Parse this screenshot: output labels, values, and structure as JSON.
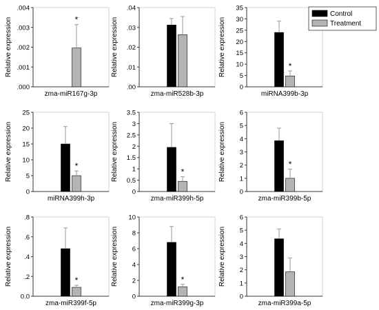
{
  "legend": {
    "items": [
      {
        "label": "Control",
        "color": "#000000"
      },
      {
        "label": "Treatment",
        "color": "#b3b3b3"
      }
    ],
    "position": "top-right"
  },
  "colors": {
    "control": "#000000",
    "treatment": "#b3b3b3",
    "axis": "#333333",
    "frame": "#c8c8c8"
  },
  "ylabel": "Relative expression",
  "chart_data": [
    {
      "type": "bar",
      "title": "",
      "xlabel": "zma-miR167g-3p",
      "ylabel": "Relative expression",
      "ylim": [
        0,
        0.004
      ],
      "yticks": [
        ".000",
        ".001",
        ".002",
        ".003",
        ".004"
      ],
      "series": [
        {
          "name": "Control",
          "values": [
            0
          ],
          "errors": [
            0
          ]
        },
        {
          "name": "Treatment",
          "values": [
            0.00196
          ],
          "errors": [
            0.00118
          ]
        }
      ],
      "annotations": [
        {
          "text": "*",
          "series": "Treatment"
        }
      ]
    },
    {
      "type": "bar",
      "title": "",
      "xlabel": "zma-miR528b-3p",
      "ylabel": "Relative expression",
      "ylim": [
        0,
        0.04
      ],
      "yticks": [
        ".00",
        ".01",
        ".02",
        ".03",
        ".04"
      ],
      "series": [
        {
          "name": "Control",
          "values": [
            0.0312
          ],
          "errors": [
            0.0033
          ]
        },
        {
          "name": "Treatment",
          "values": [
            0.0263
          ],
          "errors": [
            0.0092
          ]
        }
      ],
      "annotations": []
    },
    {
      "type": "bar",
      "title": "",
      "xlabel": "miRNA399b-3p",
      "ylabel": "Relative expression",
      "ylim": [
        0,
        35
      ],
      "yticks": [
        "0",
        "5",
        "10",
        "15",
        "20",
        "25",
        "30",
        "35"
      ],
      "series": [
        {
          "name": "Control",
          "values": [
            24
          ],
          "errors": [
            5
          ]
        },
        {
          "name": "Treatment",
          "values": [
            4.8
          ],
          "errors": [
            2.2
          ]
        }
      ],
      "annotations": [
        {
          "text": "*",
          "series": "Treatment"
        }
      ]
    },
    {
      "type": "bar",
      "title": "",
      "xlabel": "miRNA399h-3p",
      "ylabel": "Relative expression",
      "ylim": [
        0,
        25
      ],
      "yticks": [
        "0",
        "5",
        "10",
        "15",
        "20",
        "25"
      ],
      "series": [
        {
          "name": "Control",
          "values": [
            15
          ],
          "errors": [
            5.5
          ]
        },
        {
          "name": "Treatment",
          "values": [
            5
          ],
          "errors": [
            1.5
          ]
        }
      ],
      "annotations": [
        {
          "text": "*",
          "series": "Treatment"
        }
      ]
    },
    {
      "type": "bar",
      "title": "",
      "xlabel": "zma-miR399h-5p",
      "ylabel": "Relative expression",
      "ylim": [
        0,
        3.5
      ],
      "yticks": [
        "0",
        "0.5",
        "1",
        "1.5",
        "2",
        "2.5",
        "3",
        "3.5"
      ],
      "series": [
        {
          "name": "Control",
          "values": [
            1.95
          ],
          "errors": [
            1.05
          ]
        },
        {
          "name": "Treatment",
          "values": [
            0.45
          ],
          "errors": [
            0.2
          ]
        }
      ],
      "annotations": [
        {
          "text": "*",
          "series": "Treatment"
        }
      ]
    },
    {
      "type": "bar",
      "title": "",
      "xlabel": "zma-miR399b-5p",
      "ylabel": "Relative expression",
      "ylim": [
        0,
        6
      ],
      "yticks": [
        "0",
        "1",
        "2",
        "3",
        "4",
        "5",
        "6"
      ],
      "series": [
        {
          "name": "Control",
          "values": [
            3.85
          ],
          "errors": [
            0.95
          ]
        },
        {
          "name": "Treatment",
          "values": [
            1
          ],
          "errors": [
            0.7
          ]
        }
      ],
      "annotations": [
        {
          "text": "*",
          "series": "Treatment"
        }
      ]
    },
    {
      "type": "bar",
      "title": "",
      "xlabel": "zma-miR399f-5p",
      "ylabel": "Relative expression",
      "ylim": [
        0,
        0.8
      ],
      "yticks": [
        "0.0",
        ".2",
        ".4",
        ".6",
        ".8"
      ],
      "series": [
        {
          "name": "Control",
          "values": [
            0.48
          ],
          "errors": [
            0.21
          ]
        },
        {
          "name": "Treatment",
          "values": [
            0.09
          ],
          "errors": [
            0.02
          ]
        }
      ],
      "annotations": [
        {
          "text": "*",
          "series": "Treatment"
        }
      ]
    },
    {
      "type": "bar",
      "title": "",
      "xlabel": "zma-miR399g-3p",
      "ylabel": "Relative expression",
      "ylim": [
        0,
        10
      ],
      "yticks": [
        "0",
        "2",
        "4",
        "6",
        "8",
        "10"
      ],
      "series": [
        {
          "name": "Control",
          "values": [
            6.8
          ],
          "errors": [
            2
          ]
        },
        {
          "name": "Treatment",
          "values": [
            1.2
          ],
          "errors": [
            0.3
          ]
        }
      ],
      "annotations": [
        {
          "text": "*",
          "series": "Treatment"
        }
      ]
    },
    {
      "type": "bar",
      "title": "",
      "xlabel": "zma-miR399a-5p",
      "ylabel": "Relative expression",
      "ylim": [
        0,
        6
      ],
      "yticks": [
        "0",
        "1",
        "2",
        "3",
        "4",
        "5",
        "6"
      ],
      "series": [
        {
          "name": "Control",
          "values": [
            4.35
          ],
          "errors": [
            0.75
          ]
        },
        {
          "name": "Treatment",
          "values": [
            1.85
          ],
          "errors": [
            1.05
          ]
        }
      ],
      "annotations": []
    }
  ]
}
